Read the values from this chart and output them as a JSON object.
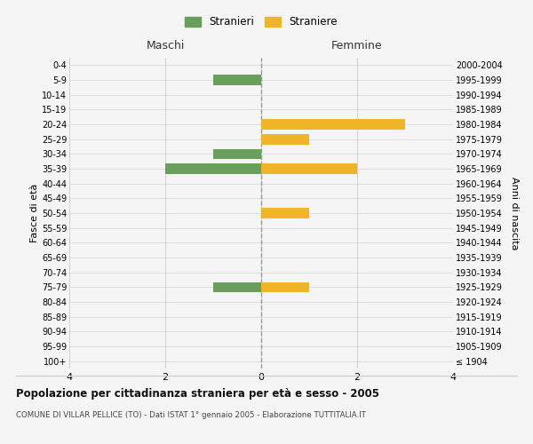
{
  "age_groups": [
    "100+",
    "95-99",
    "90-94",
    "85-89",
    "80-84",
    "75-79",
    "70-74",
    "65-69",
    "60-64",
    "55-59",
    "50-54",
    "45-49",
    "40-44",
    "35-39",
    "30-34",
    "25-29",
    "20-24",
    "15-19",
    "10-14",
    "5-9",
    "0-4"
  ],
  "birth_years": [
    "≤ 1904",
    "1905-1909",
    "1910-1914",
    "1915-1919",
    "1920-1924",
    "1925-1929",
    "1930-1934",
    "1935-1939",
    "1940-1944",
    "1945-1949",
    "1950-1954",
    "1955-1959",
    "1960-1964",
    "1965-1969",
    "1970-1974",
    "1975-1979",
    "1980-1984",
    "1985-1989",
    "1990-1994",
    "1995-1999",
    "2000-2004"
  ],
  "maschi": [
    0,
    0,
    0,
    0,
    0,
    1,
    0,
    0,
    0,
    0,
    0,
    0,
    0,
    2,
    1,
    0,
    0,
    0,
    0,
    1,
    0
  ],
  "femmine": [
    0,
    0,
    0,
    0,
    0,
    1,
    0,
    0,
    0,
    0,
    1,
    0,
    0,
    2,
    0,
    1,
    3,
    0,
    0,
    0,
    0
  ],
  "color_maschi": "#6a9e5c",
  "color_femmine": "#f0b429",
  "xlim": 4,
  "title": "Popolazione per cittadinanza straniera per età e sesso - 2005",
  "subtitle": "COMUNE DI VILLAR PELLICE (TO) - Dati ISTAT 1° gennaio 2005 - Elaborazione TUTTITALIA.IT",
  "ylabel_left": "Fasce di età",
  "ylabel_right": "Anni di nascita",
  "legend_maschi": "Stranieri",
  "legend_femmine": "Straniere",
  "maschi_label": "Maschi",
  "femmine_label": "Femmine",
  "bg_color": "#f5f5f5",
  "grid_color": "#cccccc",
  "bar_height": 0.7
}
